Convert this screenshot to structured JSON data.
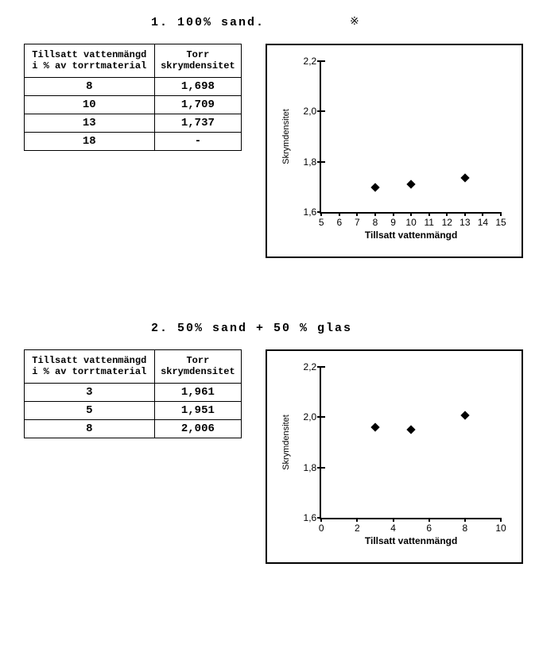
{
  "sections": [
    {
      "title": "1.  100% sand.",
      "table": {
        "headers": [
          "Tillsatt vattenmängd\ni % av torrtmaterial",
          "Torr\nskrymdensitet"
        ],
        "rows": [
          [
            "8",
            "1,698"
          ],
          [
            "10",
            "1,709"
          ],
          [
            "13",
            "1,737"
          ],
          [
            "18",
            "-"
          ]
        ]
      },
      "chart": {
        "type": "scatter",
        "xlabel": "Tillsatt vattenmängd",
        "ylabel": "Skrymdensitet",
        "xlim": [
          5,
          15
        ],
        "ylim": [
          1.6,
          2.2
        ],
        "xticks": [
          5,
          6,
          7,
          8,
          9,
          10,
          11,
          12,
          13,
          14,
          15
        ],
        "yticks": [
          1.6,
          1.8,
          2.0,
          2.2
        ],
        "ytick_labels": [
          "1,6",
          "1,8",
          "2,0",
          "2,2"
        ],
        "points": [
          {
            "x": 8,
            "y": 1.698
          },
          {
            "x": 10,
            "y": 1.709
          },
          {
            "x": 13,
            "y": 1.737
          }
        ],
        "marker_color": "#000000",
        "background_color": "#ffffff",
        "axis_color": "#000000",
        "label_fontsize": 12,
        "title_fontsize": 15
      }
    },
    {
      "title": "2.  50% sand  +  50 % glas",
      "table": {
        "headers": [
          "Tillsatt vattenmängd\ni % av torrtmaterial",
          "Torr\nskrymdensitet"
        ],
        "rows": [
          [
            "3",
            "1,961"
          ],
          [
            "5",
            "1,951"
          ],
          [
            "8",
            "2,006"
          ]
        ]
      },
      "chart": {
        "type": "scatter",
        "xlabel": "Tillsatt vattenmängd",
        "ylabel": "Skrymdensitet",
        "xlim": [
          0,
          10
        ],
        "ylim": [
          1.6,
          2.2
        ],
        "xticks": [
          0,
          2,
          4,
          6,
          8,
          10
        ],
        "yticks": [
          1.6,
          1.8,
          2.0,
          2.2
        ],
        "ytick_labels": [
          "1,6",
          "1,8",
          "2,0",
          "2,2"
        ],
        "points": [
          {
            "x": 3,
            "y": 1.961
          },
          {
            "x": 5,
            "y": 1.951
          },
          {
            "x": 8,
            "y": 2.006
          }
        ],
        "marker_color": "#000000",
        "background_color": "#ffffff",
        "axis_color": "#000000",
        "label_fontsize": 12,
        "title_fontsize": 15
      }
    }
  ],
  "decorative_glyph": "※"
}
